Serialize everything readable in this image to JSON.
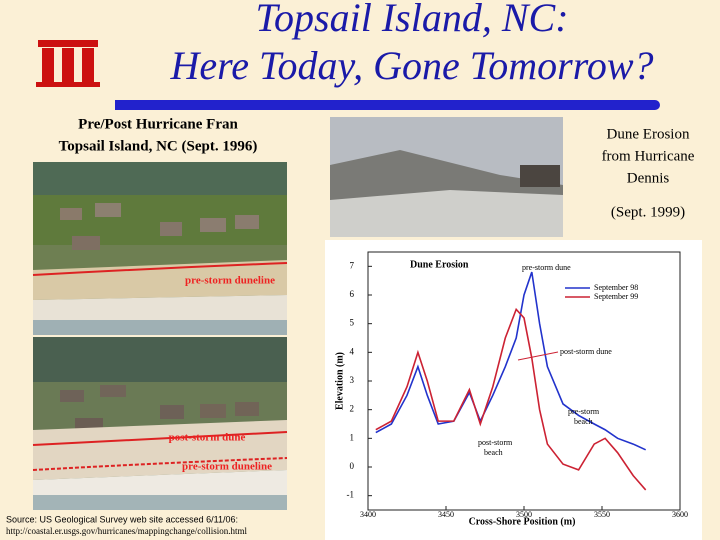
{
  "title": [
    "Topsail Island, NC:",
    "Here Today, Gone Tomorrow?"
  ],
  "left_caption": [
    "Pre/Post Hurricane Fran",
    "Topsail Island, NC (Sept. 1996)"
  ],
  "photo_top_labels": [
    "pre-storm duneline"
  ],
  "photo_bottom_labels": [
    "post-storm dune",
    "pre-storm duneline"
  ],
  "source": [
    "Source: US Geological Survey web site accessed 6/11/06:",
    "http://coastal.er.usgs.gov/hurricanes/mappingchange/collision.html"
  ],
  "right_caption": [
    "Dune Erosion",
    "from Hurricane",
    "Dennis"
  ],
  "right_date": "(Sept. 1999)",
  "chart_data": {
    "type": "line",
    "title": "Dune Erosion",
    "xlabel": "Cross-Shore Position (m)",
    "ylabel": "Elevation (m)",
    "xlim": [
      3400,
      3600
    ],
    "xticks": [
      3400,
      3450,
      3500,
      3550,
      3600
    ],
    "ylim": [
      -1.5,
      7.5
    ],
    "yticks": [
      -1,
      0,
      1,
      2,
      3,
      4,
      5,
      6,
      7
    ],
    "annotations": {
      "pre_dune": "pre-storm dune",
      "post_dune": "post-storm dune",
      "pre_beach": [
        "pre-storm",
        "beach"
      ],
      "post_beach": [
        "post-storm",
        "beach"
      ]
    },
    "x": [
      3405,
      3415,
      3425,
      3432,
      3438,
      3445,
      3455,
      3465,
      3472,
      3480,
      3488,
      3495,
      3500,
      3505,
      3510,
      3515,
      3525,
      3535,
      3545,
      3552,
      3560,
      3570,
      3578
    ],
    "series": [
      {
        "name": "September 98",
        "color": "#2233cc",
        "values": [
          1.2,
          1.5,
          2.5,
          3.5,
          2.5,
          1.5,
          1.6,
          2.6,
          1.6,
          2.5,
          3.5,
          4.5,
          6.0,
          6.8,
          5.0,
          3.5,
          2.2,
          1.8,
          1.5,
          1.3,
          1.0,
          0.8,
          0.6
        ]
      },
      {
        "name": "September 99",
        "color": "#cc2233",
        "values": [
          1.3,
          1.6,
          2.8,
          4.0,
          3.0,
          1.6,
          1.6,
          2.7,
          1.5,
          2.8,
          4.5,
          5.5,
          5.2,
          3.8,
          2.0,
          0.8,
          0.1,
          -0.1,
          0.8,
          1.0,
          0.5,
          -0.3,
          -0.8
        ]
      }
    ]
  }
}
